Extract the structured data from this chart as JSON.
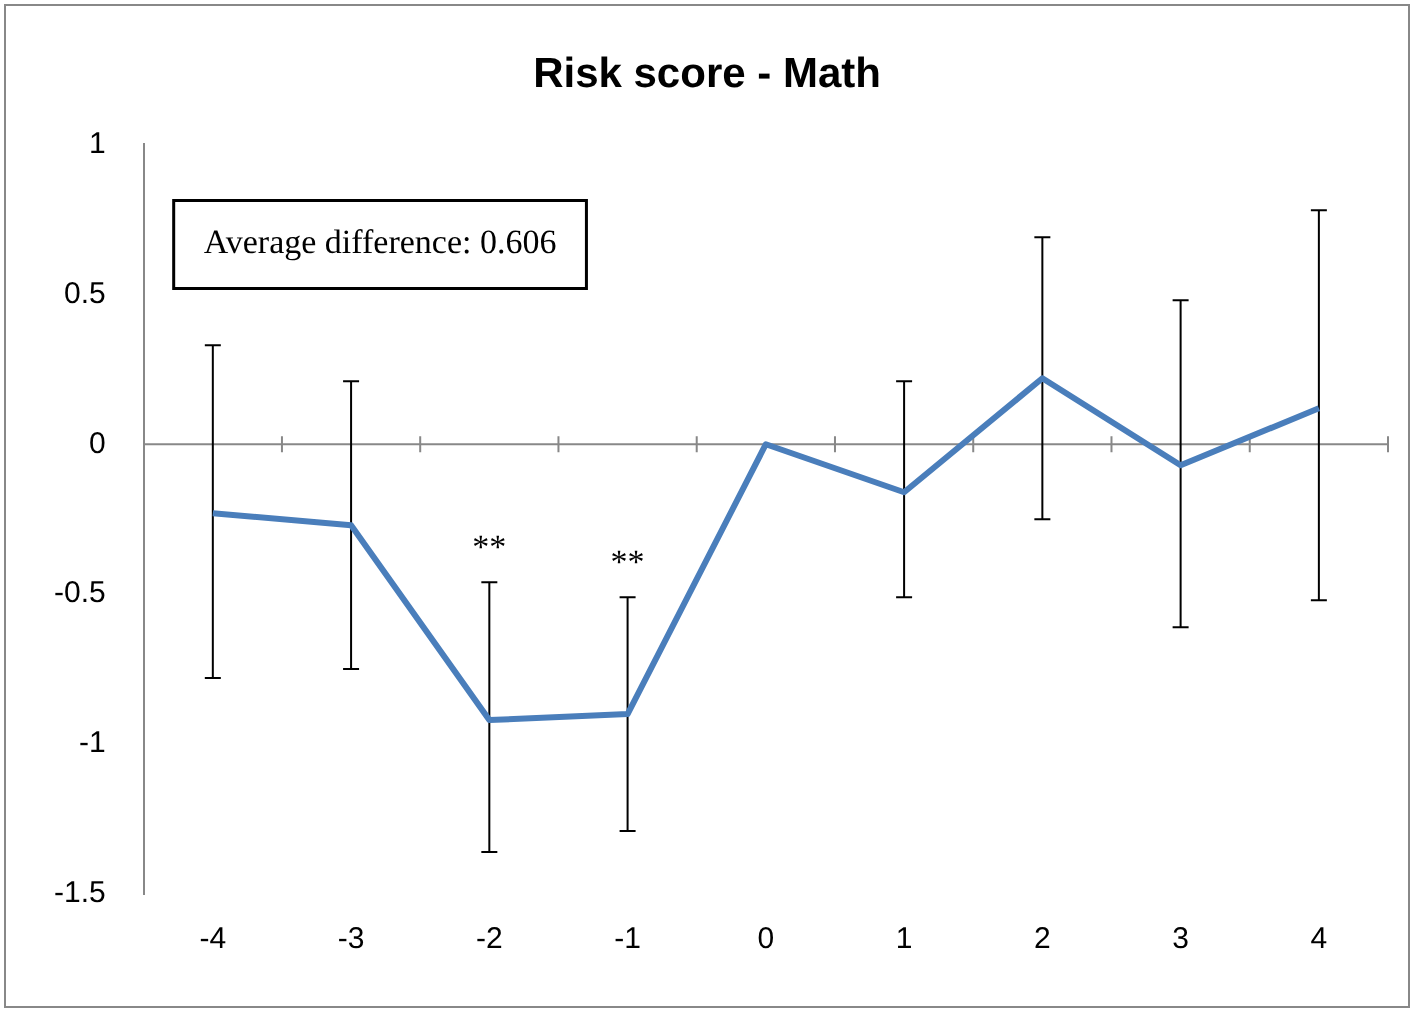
{
  "chart_data": {
    "type": "line",
    "title": "Risk score - Math",
    "categories": [
      "-4",
      "-3",
      "-2",
      "-1",
      "0",
      "1",
      "2",
      "3",
      "4"
    ],
    "series": [
      {
        "color": "#4a7ebb",
        "values": [
          -0.23,
          -0.27,
          -0.92,
          -0.9,
          0,
          -0.16,
          0.22,
          -0.07,
          0.12
        ],
        "errors": [
          [
            -0.78,
            0.33
          ],
          [
            -0.75,
            0.21
          ],
          [
            -1.36,
            -0.46
          ],
          [
            -1.29,
            -0.51
          ],
          null,
          [
            -0.51,
            0.21
          ],
          [
            -0.25,
            0.69
          ],
          [
            -0.61,
            0.48
          ],
          [
            -0.52,
            0.78
          ]
        ]
      }
    ],
    "ylim": [
      -1.5,
      1
    ],
    "yticks": [
      -1.5,
      -1,
      -0.5,
      0,
      0.5,
      1
    ],
    "ref_lines": [
      {
        "axis": "y",
        "value": 0
      }
    ],
    "annotations": [
      "Average difference: 0.606",
      {
        "text": "**",
        "x": "-2",
        "y": -0.46
      },
      {
        "text": "**",
        "x": "-1",
        "y": -0.51
      }
    ],
    "grid": false,
    "legend": false,
    "marker": "none",
    "line_style": "solid"
  }
}
